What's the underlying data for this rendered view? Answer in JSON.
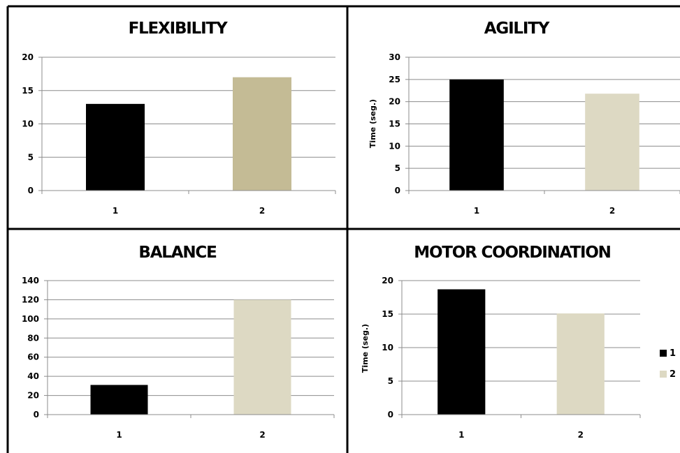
{
  "chart_data": [
    {
      "type": "bar",
      "title": "FLEXIBILITY",
      "ylabel": "",
      "categories": [
        "1",
        "2"
      ],
      "values": [
        13,
        17
      ],
      "colors": [
        "#000000",
        "#c4bb95"
      ],
      "ylim": [
        0,
        20
      ],
      "yticks": [
        "0",
        "5",
        "10",
        "15",
        "20"
      ],
      "grid": true
    },
    {
      "type": "bar",
      "title": "AGILITY",
      "ylabel": "Time (seg.)",
      "categories": [
        "1",
        "2"
      ],
      "values": [
        25,
        21.8
      ],
      "colors": [
        "#000000",
        "#ddd9c3"
      ],
      "ylim": [
        0,
        30
      ],
      "yticks": [
        "0",
        "5",
        "10",
        "15",
        "20",
        "25",
        "30"
      ],
      "grid": true
    },
    {
      "type": "bar",
      "title": "BALANCE",
      "ylabel": "",
      "categories": [
        "1",
        "2"
      ],
      "values": [
        31,
        120
      ],
      "colors": [
        "#000000",
        "#ddd9c3"
      ],
      "ylim": [
        0,
        140
      ],
      "yticks": [
        "0",
        "20",
        "40",
        "60",
        "80",
        "100",
        "120",
        "140"
      ],
      "grid": true
    },
    {
      "type": "bar",
      "title": "MOTOR COORDINATION",
      "ylabel": "Time (seg.)",
      "categories": [
        "1",
        "2"
      ],
      "values": [
        18.7,
        15.1
      ],
      "colors": [
        "#000000",
        "#ddd9c3"
      ],
      "ylim": [
        0,
        20
      ],
      "yticks": [
        "0",
        "5",
        "10",
        "15",
        "20"
      ],
      "grid": true
    }
  ],
  "legend": {
    "placement": "right",
    "items": [
      {
        "label": "1",
        "color": "#000000"
      },
      {
        "label": "2",
        "color": "#ddd9c3"
      }
    ]
  }
}
